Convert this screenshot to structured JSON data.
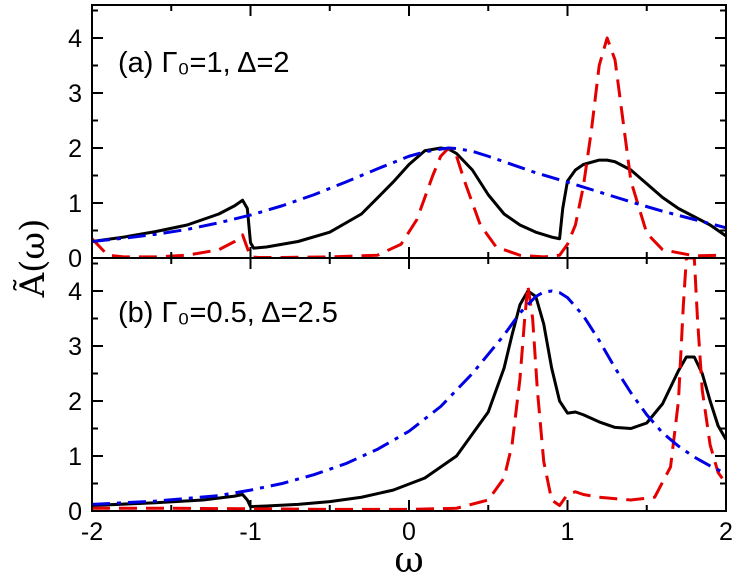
{
  "chart_data": [
    {
      "type": "line",
      "label": "(a)  Γ₀=1, Δ=2",
      "ylabel": "Ã(ω)",
      "xlabel": "",
      "xlim": [
        -2,
        2
      ],
      "ylim": [
        0,
        4.6
      ],
      "yticks": [
        "0",
        "1",
        "2",
        "3",
        "4"
      ],
      "xticks": [],
      "grid": false,
      "series": [
        {
          "style": "solid",
          "color": "#000000",
          "x": [
            -2.0,
            -1.8,
            -1.6,
            -1.4,
            -1.2,
            -1.1,
            -1.05,
            -1.02,
            -1.0,
            -0.98,
            -0.9,
            -0.7,
            -0.5,
            -0.3,
            -0.1,
            0.0,
            0.1,
            0.2,
            0.25,
            0.3,
            0.4,
            0.5,
            0.6,
            0.7,
            0.8,
            0.9,
            0.95,
            0.97,
            1.0,
            1.05,
            1.1,
            1.2,
            1.25,
            1.3,
            1.4,
            1.5,
            1.6,
            1.7,
            1.8,
            1.9,
            2.0
          ],
          "y": [
            0.3,
            0.38,
            0.48,
            0.6,
            0.8,
            0.95,
            1.05,
            0.9,
            0.28,
            0.18,
            0.2,
            0.3,
            0.47,
            0.8,
            1.38,
            1.7,
            1.95,
            2.0,
            1.98,
            1.9,
            1.6,
            1.15,
            0.8,
            0.6,
            0.47,
            0.38,
            0.35,
            0.9,
            1.4,
            1.6,
            1.7,
            1.78,
            1.78,
            1.75,
            1.6,
            1.35,
            1.1,
            0.9,
            0.75,
            0.6,
            0.4
          ]
        },
        {
          "style": "dashed",
          "color": "#e50000",
          "x": [
            -2.0,
            -1.9,
            -1.8,
            -1.6,
            -1.4,
            -1.2,
            -1.1,
            -1.05,
            -1.0,
            -0.95,
            -0.8,
            -0.5,
            -0.2,
            -0.05,
            0.05,
            0.15,
            0.2,
            0.25,
            0.3,
            0.35,
            0.45,
            0.55,
            0.7,
            0.85,
            0.95,
            1.0,
            1.05,
            1.1,
            1.15,
            1.2,
            1.25,
            1.3,
            1.35,
            1.4,
            1.5,
            1.6,
            1.8,
            2.0
          ],
          "y": [
            0.35,
            0.05,
            0.02,
            0.02,
            0.05,
            0.15,
            0.3,
            0.42,
            0.02,
            0.01,
            0.01,
            0.02,
            0.05,
            0.25,
            0.7,
            1.5,
            1.85,
            2.0,
            1.85,
            1.4,
            0.6,
            0.2,
            0.05,
            0.02,
            0.05,
            0.25,
            0.6,
            1.3,
            2.3,
            3.5,
            4.0,
            3.6,
            2.5,
            1.4,
            0.45,
            0.15,
            0.04,
            0.05
          ]
        },
        {
          "style": "dashdot",
          "color": "#0000e5",
          "x": [
            -2.0,
            -1.8,
            -1.6,
            -1.4,
            -1.2,
            -1.0,
            -0.8,
            -0.6,
            -0.4,
            -0.2,
            0.0,
            0.1,
            0.2,
            0.25,
            0.3,
            0.4,
            0.5,
            0.6,
            0.8,
            1.0,
            1.2,
            1.4,
            1.6,
            1.8,
            2.0
          ],
          "y": [
            0.3,
            0.36,
            0.43,
            0.52,
            0.64,
            0.78,
            0.95,
            1.15,
            1.38,
            1.62,
            1.85,
            1.93,
            1.98,
            2.0,
            1.99,
            1.94,
            1.85,
            1.75,
            1.55,
            1.38,
            1.2,
            1.02,
            0.85,
            0.7,
            0.55
          ]
        }
      ]
    },
    {
      "type": "line",
      "label": "(b)  Γ₀=0.5, Δ=2.5",
      "ylabel": "Ã(ω)",
      "xlabel": "ω",
      "xlim": [
        -2,
        2
      ],
      "ylim": [
        0,
        4.6
      ],
      "yticks": [
        "0",
        "1",
        "2",
        "3",
        "4"
      ],
      "xticks": [
        "-2",
        "-1",
        "0",
        "1",
        "2"
      ],
      "grid": false,
      "series": [
        {
          "style": "solid",
          "color": "#000000",
          "x": [
            -2.0,
            -1.6,
            -1.3,
            -1.1,
            -1.05,
            -1.02,
            -1.0,
            -0.9,
            -0.7,
            -0.5,
            -0.3,
            -0.1,
            0.1,
            0.3,
            0.5,
            0.6,
            0.65,
            0.7,
            0.75,
            0.8,
            0.85,
            0.9,
            0.95,
            1.0,
            1.05,
            1.1,
            1.2,
            1.3,
            1.4,
            1.5,
            1.6,
            1.7,
            1.75,
            1.8,
            1.85,
            1.9,
            1.95,
            2.0
          ],
          "y": [
            0.1,
            0.15,
            0.2,
            0.27,
            0.3,
            0.2,
            0.08,
            0.09,
            0.12,
            0.17,
            0.25,
            0.38,
            0.6,
            1.0,
            1.8,
            2.6,
            3.2,
            3.75,
            4.0,
            3.9,
            3.4,
            2.6,
            2.0,
            1.78,
            1.8,
            1.75,
            1.62,
            1.52,
            1.5,
            1.6,
            1.95,
            2.55,
            2.8,
            2.8,
            2.5,
            2.0,
            1.55,
            1.3
          ]
        },
        {
          "style": "dashed",
          "color": "#e50000",
          "x": [
            -2.0,
            -1.5,
            -1.0,
            -0.5,
            0.0,
            0.3,
            0.5,
            0.6,
            0.65,
            0.7,
            0.73,
            0.75,
            0.78,
            0.81,
            0.85,
            0.9,
            0.95,
            1.0,
            1.05,
            1.1,
            1.2,
            1.4,
            1.55,
            1.65,
            1.7,
            1.73,
            1.75,
            1.78,
            1.8,
            1.82,
            1.85,
            1.9,
            1.95,
            2.0
          ],
          "y": [
            0.05,
            0.05,
            0.04,
            0.03,
            0.03,
            0.05,
            0.2,
            0.6,
            1.2,
            2.4,
            3.5,
            4.1,
            3.5,
            2.2,
            0.9,
            0.2,
            0.1,
            0.3,
            0.35,
            0.3,
            0.25,
            0.2,
            0.25,
            0.8,
            2.0,
            3.7,
            4.6,
            4.6,
            4.6,
            3.5,
            2.2,
            1.2,
            0.7,
            0.5
          ]
        },
        {
          "style": "dashdot",
          "color": "#0000e5",
          "x": [
            -2.0,
            -1.6,
            -1.2,
            -1.0,
            -0.8,
            -0.6,
            -0.4,
            -0.2,
            0.0,
            0.2,
            0.4,
            0.6,
            0.7,
            0.8,
            0.85,
            0.9,
            0.95,
            1.0,
            1.1,
            1.2,
            1.3,
            1.4,
            1.5,
            1.6,
            1.7,
            1.8,
            1.9,
            2.0
          ],
          "y": [
            0.12,
            0.18,
            0.28,
            0.38,
            0.5,
            0.66,
            0.86,
            1.12,
            1.45,
            1.9,
            2.5,
            3.2,
            3.6,
            3.9,
            3.98,
            4.0,
            3.97,
            3.88,
            3.55,
            3.1,
            2.6,
            2.15,
            1.75,
            1.42,
            1.18,
            0.98,
            0.82,
            0.68
          ]
        }
      ]
    }
  ]
}
